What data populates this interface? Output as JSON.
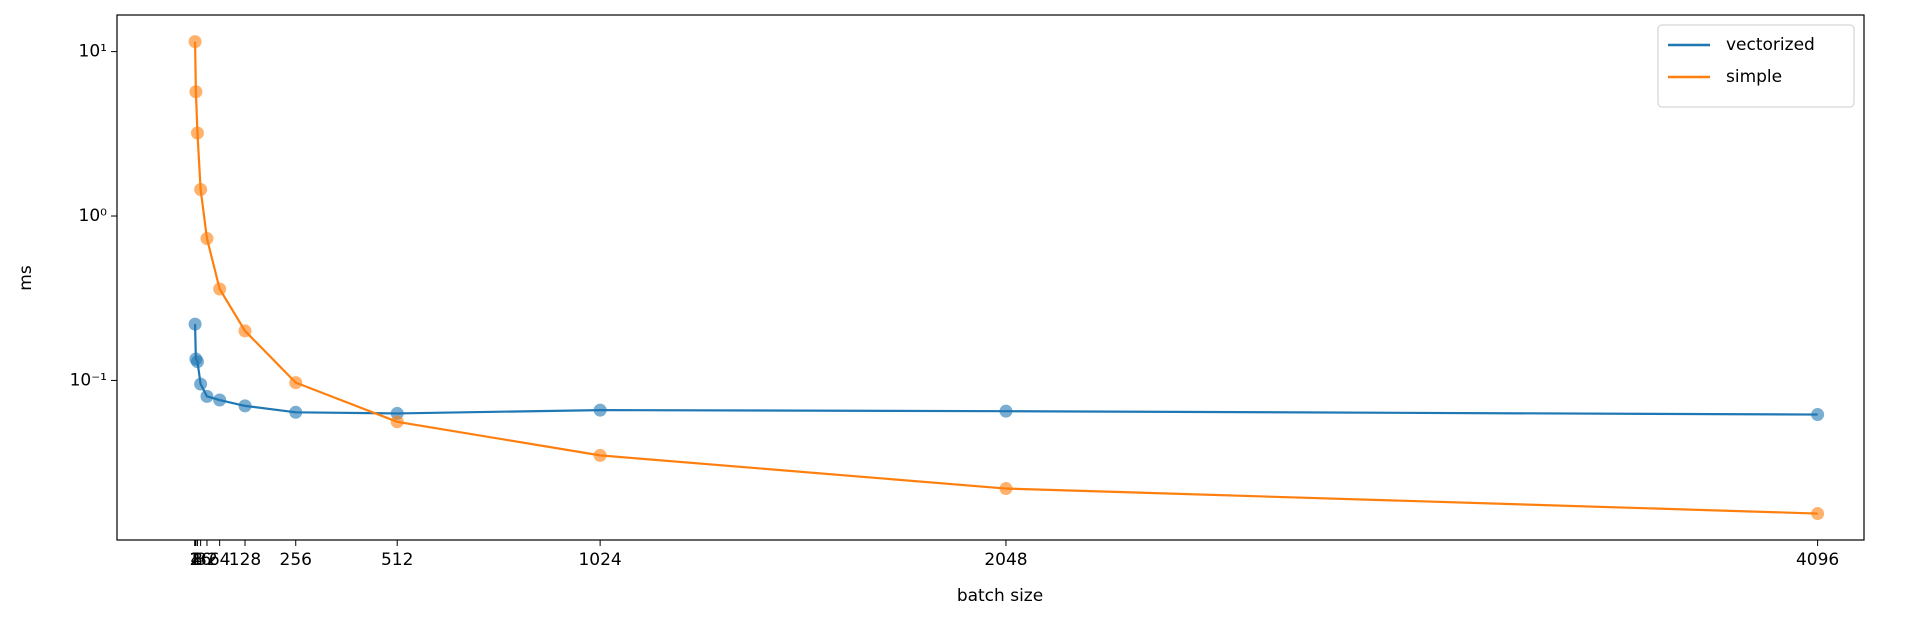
{
  "chart_data": {
    "type": "line",
    "x_label": "batch size",
    "y_label": "ms",
    "x": [
      2,
      4,
      8,
      16,
      32,
      64,
      128,
      256,
      512,
      1024,
      2048,
      4096
    ],
    "series": [
      {
        "name": "vectorized",
        "color": "#1f77b4",
        "values": [
          0.22,
          0.135,
          0.13,
          0.095,
          0.08,
          0.076,
          0.07,
          0.064,
          0.063,
          0.066,
          0.065,
          0.062
        ]
      },
      {
        "name": "simple",
        "color": "#ff7f0e",
        "values": [
          11.5,
          5.7,
          3.2,
          1.45,
          0.73,
          0.36,
          0.2,
          0.097,
          0.056,
          0.035,
          0.022,
          0.0155
        ]
      }
    ],
    "xlim": [
      -195,
      4213
    ],
    "ylim": [
      0.0107,
      16.7
    ],
    "log_y": true,
    "xticks": [
      1,
      2,
      4,
      8,
      16,
      32,
      64,
      128,
      256,
      512,
      1024,
      2048,
      4096
    ],
    "yticks": [
      {
        "value": 0.1,
        "label": "10⁻¹"
      },
      {
        "value": 1,
        "label": "10⁰"
      },
      {
        "value": 10,
        "label": "10¹"
      }
    ],
    "legend": "upper right"
  }
}
